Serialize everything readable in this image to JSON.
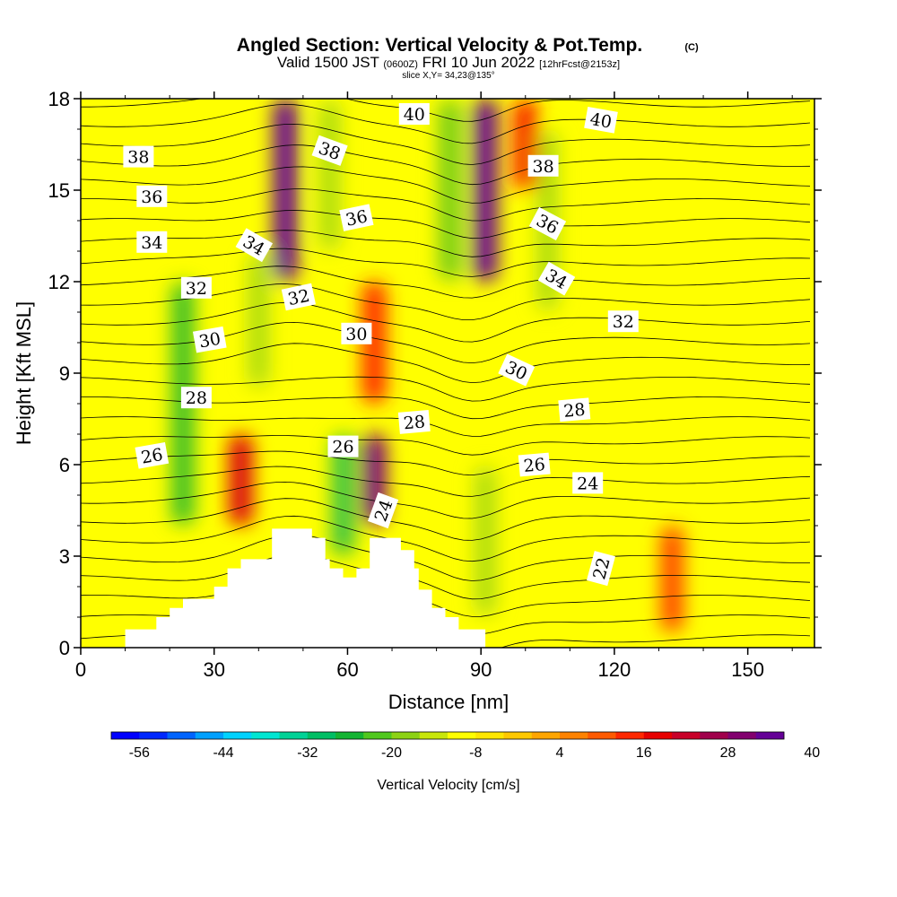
{
  "chart_data": {
    "type": "heatmap",
    "title": "Angled Section: Vertical Velocity & Pot.Temp.",
    "title_unit": "(C)",
    "subtitle_parts": {
      "lead": "Valid 1500 JST",
      "utc": "(0600Z)",
      "date": "FRI 10 Jun 2022",
      "forecast": "[12hrFcst@2153z]"
    },
    "slice_note": "slice X,Y= 34,23@135°",
    "xlabel": "Distance [nm]",
    "ylabel": "Height [Kft MSL]",
    "xlim": [
      0,
      165
    ],
    "ylim": [
      0,
      18
    ],
    "x_ticks": [
      "0",
      "30",
      "60",
      "90",
      "120",
      "150"
    ],
    "y_ticks": [
      "0",
      "3",
      "6",
      "9",
      "12",
      "15",
      "18"
    ],
    "colorbar": {
      "label": "Vertical Velocity [cm/s]",
      "tick_labels": [
        "-56",
        "-44",
        "-32",
        "-20",
        "-8",
        "4",
        "16",
        "28",
        "40"
      ],
      "colors": [
        "#0000ff",
        "#0028ff",
        "#0064ff",
        "#00a0ff",
        "#00d2ff",
        "#00e6d2",
        "#00d296",
        "#00be64",
        "#14b432",
        "#50c81e",
        "#8cd214",
        "#c8e60a",
        "#ffff00",
        "#ffe600",
        "#ffc800",
        "#ffa500",
        "#ff8200",
        "#ff5a00",
        "#ff2800",
        "#e60000",
        "#c80028",
        "#a0004b",
        "#82006e",
        "#640096"
      ]
    },
    "background_color": "#ffff00",
    "w_columns": [
      {
        "x": 23,
        "w": -22,
        "z0": 4,
        "z1": 12
      },
      {
        "x": 40,
        "w": -16,
        "z0": 8.5,
        "z1": 13
      },
      {
        "x": 46,
        "w": 34,
        "z0": 12,
        "z1": 18
      },
      {
        "x": 56,
        "w": -14,
        "z0": 13,
        "z1": 18
      },
      {
        "x": 36,
        "w": 16,
        "z0": 4,
        "z1": 7
      },
      {
        "x": 66,
        "w": 30,
        "z0": 4,
        "z1": 7
      },
      {
        "x": 59,
        "w": -24,
        "z0": 3,
        "z1": 7
      },
      {
        "x": 66,
        "w": 12,
        "z0": 8,
        "z1": 12
      },
      {
        "x": 83,
        "w": -18,
        "z0": 12,
        "z1": 18
      },
      {
        "x": 91,
        "w": 32,
        "z0": 12,
        "z1": 18
      },
      {
        "x": 105,
        "w": -16,
        "z0": 11,
        "z1": 17
      },
      {
        "x": 91,
        "w": -16,
        "z0": 1,
        "z1": 6
      },
      {
        "x": 133,
        "w": 10,
        "z0": 0.5,
        "z1": 4
      },
      {
        "x": 100,
        "w": 14,
        "z0": 15,
        "z1": 18
      }
    ],
    "contour_labels": [
      {
        "text": "38",
        "x": 13,
        "z": 16.1,
        "rot": 0
      },
      {
        "text": "36",
        "x": 16,
        "z": 14.8,
        "rot": 0
      },
      {
        "text": "34",
        "x": 16,
        "z": 13.3,
        "rot": 0
      },
      {
        "text": "32",
        "x": 26,
        "z": 11.8,
        "rot": 0
      },
      {
        "text": "30",
        "x": 29,
        "z": 10.1,
        "rot": -10
      },
      {
        "text": "28",
        "x": 26,
        "z": 8.2,
        "rot": 0
      },
      {
        "text": "26",
        "x": 16,
        "z": 6.3,
        "rot": -10
      },
      {
        "text": "34",
        "x": 39,
        "z": 13.2,
        "rot": 30
      },
      {
        "text": "38",
        "x": 56,
        "z": 16.3,
        "rot": 20
      },
      {
        "text": "36",
        "x": 62,
        "z": 14.1,
        "rot": -12
      },
      {
        "text": "32",
        "x": 49,
        "z": 11.5,
        "rot": -12
      },
      {
        "text": "30",
        "x": 62,
        "z": 10.3,
        "rot": 0
      },
      {
        "text": "40",
        "x": 75,
        "z": 17.5,
        "rot": 0
      },
      {
        "text": "40",
        "x": 117,
        "z": 17.3,
        "rot": 10
      },
      {
        "text": "38",
        "x": 104,
        "z": 15.8,
        "rot": 0
      },
      {
        "text": "36",
        "x": 105,
        "z": 13.9,
        "rot": 28
      },
      {
        "text": "34",
        "x": 107,
        "z": 12.1,
        "rot": 30
      },
      {
        "text": "32",
        "x": 122,
        "z": 10.7,
        "rot": 0
      },
      {
        "text": "30",
        "x": 98,
        "z": 9.1,
        "rot": 25
      },
      {
        "text": "28",
        "x": 75,
        "z": 7.4,
        "rot": -5
      },
      {
        "text": "28",
        "x": 111,
        "z": 7.8,
        "rot": -5
      },
      {
        "text": "26",
        "x": 59,
        "z": 6.6,
        "rot": 0
      },
      {
        "text": "26",
        "x": 102,
        "z": 6.0,
        "rot": -5
      },
      {
        "text": "24",
        "x": 114,
        "z": 5.4,
        "rot": 0
      },
      {
        "text": "24",
        "x": 68,
        "z": 4.5,
        "rot": -70
      },
      {
        "text": "22",
        "x": 117,
        "z": 2.6,
        "rot": -75
      }
    ],
    "terrain": [
      [
        0,
        0
      ],
      [
        10,
        0
      ],
      [
        10,
        0.6
      ],
      [
        17,
        0.6
      ],
      [
        17,
        1
      ],
      [
        20,
        1
      ],
      [
        20,
        1.3
      ],
      [
        23,
        1.3
      ],
      [
        23,
        1.6
      ],
      [
        30,
        1.6
      ],
      [
        30,
        2
      ],
      [
        33,
        2
      ],
      [
        33,
        2.6
      ],
      [
        36,
        2.6
      ],
      [
        36,
        2.9
      ],
      [
        43,
        2.9
      ],
      [
        43,
        3.9
      ],
      [
        52,
        3.9
      ],
      [
        52,
        3.6
      ],
      [
        55,
        3.6
      ],
      [
        55,
        2.9
      ],
      [
        56,
        2.9
      ],
      [
        56,
        2.6
      ],
      [
        59,
        2.6
      ],
      [
        59,
        2.3
      ],
      [
        62,
        2.3
      ],
      [
        62,
        2.6
      ],
      [
        65,
        2.6
      ],
      [
        65,
        3.6
      ],
      [
        72,
        3.6
      ],
      [
        72,
        3.2
      ],
      [
        75,
        3.2
      ],
      [
        75,
        2.6
      ],
      [
        76,
        2.6
      ],
      [
        76,
        1.9
      ],
      [
        79,
        1.9
      ],
      [
        79,
        1.3
      ],
      [
        82,
        1.3
      ],
      [
        82,
        1
      ],
      [
        85,
        1
      ],
      [
        85,
        0.6
      ],
      [
        91,
        0.6
      ],
      [
        91,
        0
      ],
      [
        0,
        0
      ]
    ]
  }
}
